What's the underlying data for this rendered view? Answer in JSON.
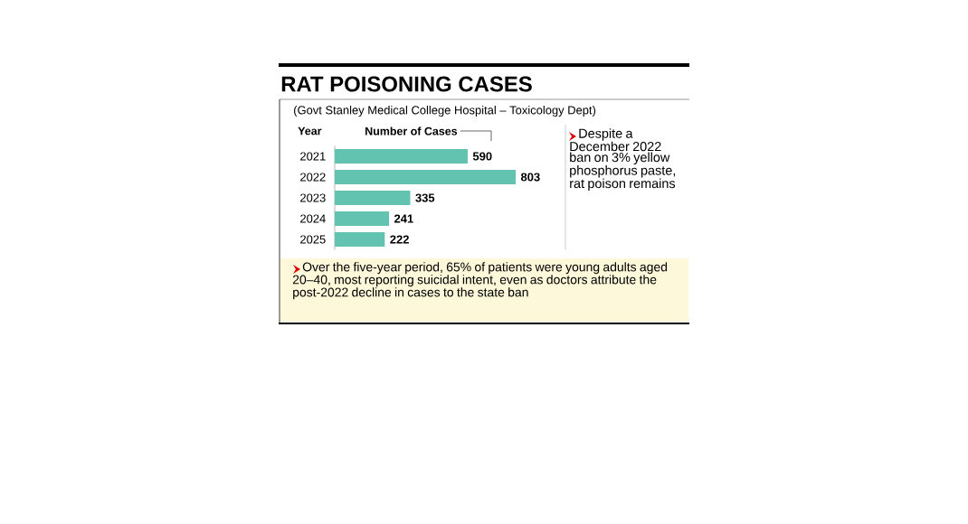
{
  "chart_data": {
    "type": "bar",
    "orientation": "horizontal",
    "title": "RAT POISONING CASES",
    "subtitle": "(Govt Stanley Medical College Hospital – Toxicology Dept)",
    "ylabel": "Year",
    "xlabel": "Number of Cases",
    "categories": [
      "2021",
      "2022",
      "2023",
      "2024",
      "2025"
    ],
    "values": [
      590,
      803,
      335,
      241,
      222
    ],
    "color": "#62c3b1",
    "data_labels": true,
    "annotations": [
      "Despite a December 2022 ban on 3% yellow phosphorus paste, rat poison remains",
      "Over the five-year period, 65% of patients were young adults aged 20–40, most reporting suicidal intent, even as doctors attribute the post-2022 decline in cases to the state ban"
    ]
  }
}
